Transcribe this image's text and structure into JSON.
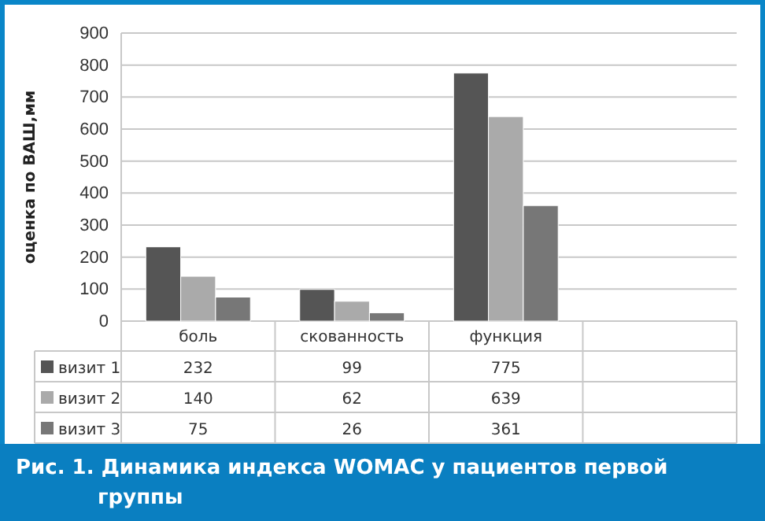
{
  "chart_data": {
    "type": "bar",
    "title": "Рис. 1. Динамика индекса WOMAC у пациентов первой группы",
    "ylabel": "оценка по ВАШ,мм",
    "categories": [
      "боль",
      "скованность",
      "функция",
      null
    ],
    "series": [
      {
        "name": "визит 1",
        "color": "#555555",
        "values": [
          232,
          99,
          775,
          null
        ]
      },
      {
        "name": "визит 2",
        "color": "#aaaaaa",
        "values": [
          140,
          62,
          639,
          null
        ]
      },
      {
        "name": "визит 3",
        "color": "#777777",
        "values": [
          75,
          26,
          361,
          null
        ]
      }
    ],
    "ylim": [
      0,
      900
    ],
    "yticks": [
      0,
      100,
      200,
      300,
      400,
      500,
      600,
      700,
      800,
      900
    ],
    "grid": "y",
    "data_labels": true,
    "legend": "bottom"
  }
}
